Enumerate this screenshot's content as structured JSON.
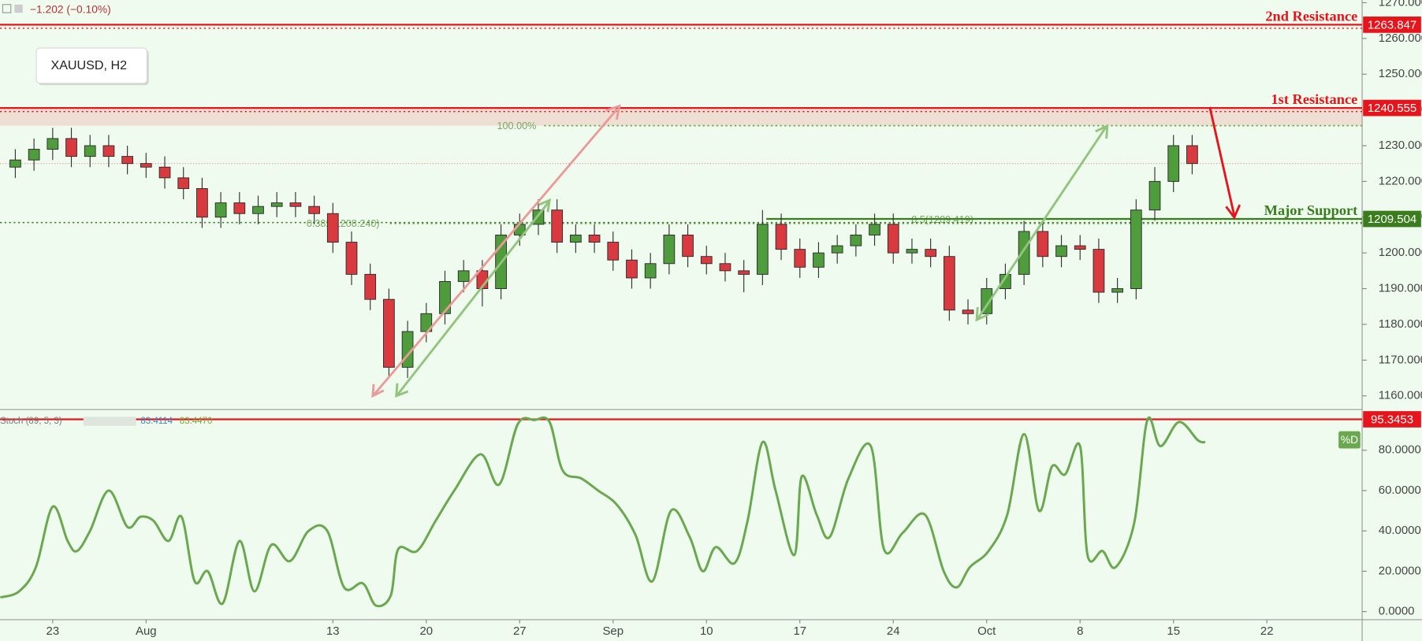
{
  "chart_data": [
    {
      "type": "candlestick",
      "title": "XAUUSD, H2",
      "subtitle": "−1.202 (−0.10%)",
      "up_color": "#4e9c3c",
      "down_color": "#d93a3f",
      "x": [
        -2,
        -1,
        0,
        1,
        2,
        3,
        4,
        5,
        6,
        7,
        8,
        9,
        10,
        11,
        12,
        13,
        14,
        15,
        16,
        17,
        18,
        19,
        20,
        21,
        22,
        23,
        24,
        25,
        26,
        27,
        28,
        29,
        30,
        31,
        32,
        33,
        34,
        35,
        36,
        37,
        38,
        39,
        40,
        41,
        42,
        43,
        44,
        45,
        46,
        47,
        48,
        49,
        50,
        51,
        52,
        53,
        54,
        55,
        56,
        57,
        58,
        59,
        60,
        61
      ],
      "open": [
        1224,
        1226,
        1229,
        1232,
        1227,
        1230,
        1227,
        1225,
        1224,
        1221,
        1218,
        1210,
        1214,
        1211,
        1213,
        1214,
        1213,
        1211,
        1203,
        1194,
        1187,
        1168,
        1178,
        1183,
        1192,
        1195,
        1190,
        1205,
        1208,
        1212,
        1203,
        1205,
        1203,
        1198,
        1193,
        1197,
        1205,
        1199,
        1197,
        1195,
        1194,
        1208,
        1201,
        1196,
        1200,
        1202,
        1205,
        1208,
        1200,
        1201,
        1199,
        1184,
        1183,
        1190,
        1194,
        1206,
        1199,
        1202,
        1201,
        1189,
        1190,
        1212,
        1220,
        1230
      ],
      "high": [
        1229,
        1232,
        1235,
        1235,
        1233,
        1233,
        1230,
        1228,
        1227,
        1224,
        1221,
        1217,
        1217,
        1216,
        1217,
        1217,
        1216,
        1214,
        1206,
        1197,
        1190,
        1181,
        1186,
        1195,
        1198,
        1198,
        1208,
        1211,
        1215,
        1215,
        1208,
        1208,
        1206,
        1201,
        1200,
        1208,
        1208,
        1202,
        1200,
        1198,
        1212,
        1211,
        1204,
        1203,
        1205,
        1208,
        1211,
        1211,
        1204,
        1204,
        1202,
        1187,
        1193,
        1197,
        1209,
        1209,
        1205,
        1205,
        1204,
        1193,
        1215,
        1224,
        1233,
        1233
      ],
      "low": [
        1221,
        1223,
        1226,
        1224,
        1224,
        1224,
        1222,
        1221,
        1218,
        1215,
        1207,
        1207,
        1208,
        1208,
        1210,
        1210,
        1208,
        1200,
        1191,
        1184,
        1165,
        1165,
        1175,
        1180,
        1189,
        1185,
        1187,
        1202,
        1205,
        1200,
        1200,
        1200,
        1195,
        1190,
        1190,
        1194,
        1196,
        1194,
        1192,
        1189,
        1191,
        1198,
        1193,
        1193,
        1197,
        1199,
        1202,
        1197,
        1197,
        1196,
        1181,
        1180,
        1180,
        1187,
        1191,
        1196,
        1196,
        1198,
        1186,
        1186,
        1187,
        1209,
        1217,
        1222
      ],
      "close": [
        1226,
        1229,
        1232,
        1227,
        1230,
        1227,
        1225,
        1224,
        1221,
        1218,
        1210,
        1214,
        1211,
        1213,
        1214,
        1213,
        1211,
        1203,
        1194,
        1187,
        1168,
        1178,
        1183,
        1192,
        1195,
        1190,
        1205,
        1208,
        1212,
        1203,
        1205,
        1203,
        1198,
        1193,
        1197,
        1205,
        1199,
        1197,
        1195,
        1194,
        1208,
        1201,
        1196,
        1200,
        1202,
        1205,
        1208,
        1200,
        1201,
        1199,
        1184,
        1183,
        1190,
        1194,
        1206,
        1199,
        1202,
        1201,
        1189,
        1190,
        1212,
        1220,
        1230,
        1225
      ],
      "xlim": [
        -2.82,
        70.1
      ],
      "ylim": [
        1156.18,
        1270.76
      ],
      "yticks": [
        {
          "value": 1160,
          "label": "1160.000"
        },
        {
          "value": 1170,
          "label": "1170.000"
        },
        {
          "value": 1180,
          "label": "1180.000"
        },
        {
          "value": 1190,
          "label": "1190.000"
        },
        {
          "value": 1200,
          "label": "1200.000"
        },
        {
          "value": 1210,
          "label": "1210.000"
        },
        {
          "value": 1220,
          "label": "1220.000"
        },
        {
          "value": 1230,
          "label": "1230.000"
        },
        {
          "value": 1240,
          "label": "1240.000"
        },
        {
          "value": 1250,
          "label": "1250.000"
        },
        {
          "value": 1260,
          "label": "1260.000"
        },
        {
          "value": 1270,
          "label": "1270.000"
        }
      ],
      "levels": [
        {
          "label": "2nd Resistance",
          "value": 1263.847,
          "color": "#e8141b"
        },
        {
          "label": "1st Resistance",
          "value": 1240.555,
          "color": "#e8141b"
        },
        {
          "label": "Major Support",
          "value": 1209.504,
          "color": "#3a7d1c"
        }
      ],
      "fib_levels": [
        {
          "label": "100.00%",
          "value": 1235.6
        },
        {
          "label": "0.382(1208.240)",
          "value": 1208.24
        },
        {
          "label": "0.5(1209.419)",
          "value": 1209.419
        }
      ]
    },
    {
      "type": "line",
      "title": "Stoch (89, 5, 3)",
      "readout": [
        {
          "label": "83.4114",
          "value": 83.4114,
          "color": "#3d85c6"
        },
        {
          "label": "83.4470",
          "value": 83.447,
          "color": "#7aa63a"
        }
      ],
      "series": [
        {
          "name": "%D",
          "color": "#6aa84f",
          "x": [
            -2.8,
            -1.8,
            -0.9,
            0,
            0.8,
            1.3,
            2,
            3,
            4,
            4.7,
            5.4,
            6.2,
            6.9,
            7.6,
            8.3,
            9.1,
            10,
            10.8,
            11.7,
            12.7,
            13.7,
            14.7,
            15.6,
            16.6,
            17.3,
            18.1,
            18.5,
            19.5,
            20.5,
            21.5,
            22.9,
            23.9,
            24.9,
            25.8,
            26.6,
            27.3,
            28.3,
            29.2,
            30.2,
            31.2,
            32.1,
            33.1,
            34.1,
            34.8,
            35.5,
            36.5,
            37.2,
            38,
            38.7,
            39.7,
            40.1,
            40.9,
            41.6,
            42.6,
            43.8,
            44.5,
            45.5,
            46.7,
            47.7,
            48.4,
            49.1,
            50.1,
            51.1,
            52,
            52.8,
            53.5,
            54.2,
            55,
            55.4,
            56.2,
            56.9,
            57.9,
            58.6,
            59.3,
            60.3,
            61.3,
            61.7
          ],
          "values": [
            7,
            10,
            22,
            52,
            35,
            30,
            40,
            60,
            42,
            47,
            45,
            35,
            47,
            15,
            20,
            4,
            35,
            10,
            33,
            25,
            40,
            40,
            12,
            14,
            3,
            8,
            31,
            30,
            45,
            60,
            78,
            63,
            93,
            95,
            94,
            70,
            66,
            60,
            53,
            38,
            15,
            50,
            37,
            20,
            32,
            24,
            45,
            84,
            60,
            28,
            67,
            48,
            37,
            66,
            82,
            31,
            39,
            48,
            20,
            12,
            22,
            30,
            48,
            88,
            50,
            72,
            68,
            82,
            28,
            30,
            22,
            44,
            95,
            82,
            94,
            85,
            84
          ]
        }
      ],
      "level": {
        "value": 95.3453,
        "color": "#e8141b"
      },
      "xlim": [
        -2.82,
        70.1
      ],
      "ylim": [
        -4.04,
        100.2
      ],
      "yticks": [
        {
          "value": 0,
          "label": "0.0000"
        },
        {
          "value": 20,
          "label": "20.0000"
        },
        {
          "value": 40,
          "label": "40.0000"
        },
        {
          "value": 60,
          "label": "60.0000"
        },
        {
          "value": 80,
          "label": "80.0000"
        }
      ],
      "xticks": [
        {
          "value": 0,
          "label": "23"
        },
        {
          "value": 5,
          "label": "Aug"
        },
        {
          "value": 15,
          "label": "13"
        },
        {
          "value": 20,
          "label": "20"
        },
        {
          "value": 25,
          "label": "27"
        },
        {
          "value": 30,
          "label": "Sep"
        },
        {
          "value": 35,
          "label": "10"
        },
        {
          "value": 40,
          "label": "17"
        },
        {
          "value": 45,
          "label": "24"
        },
        {
          "value": 50,
          "label": "Oct"
        },
        {
          "value": 55,
          "label": "8"
        },
        {
          "value": 60,
          "label": "15"
        },
        {
          "value": 65,
          "label": "22"
        }
      ]
    }
  ]
}
